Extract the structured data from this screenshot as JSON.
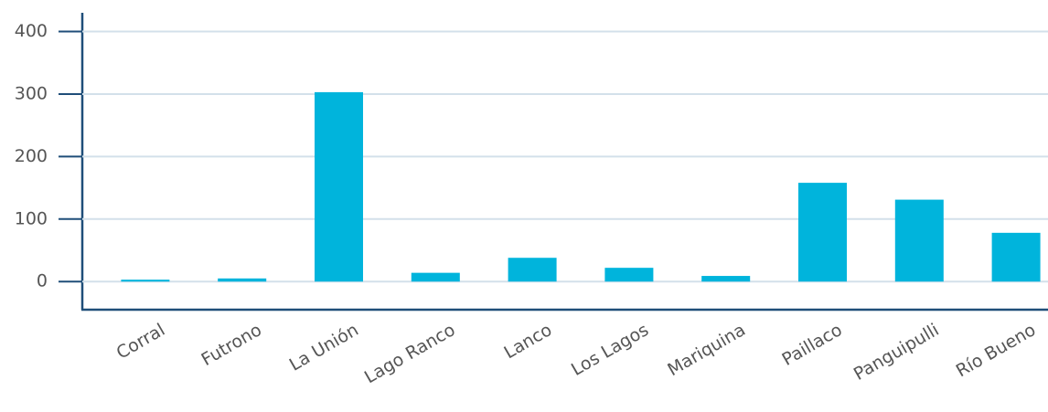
{
  "chart_data": {
    "type": "bar",
    "categories": [
      "Corral",
      "Futrono",
      "La Unión",
      "Lago Ranco",
      "Lanco",
      "Los Lagos",
      "Mariquina",
      "Paillaco",
      "Panguipulli",
      "Río Bueno"
    ],
    "values": [
      3,
      5,
      303,
      14,
      38,
      22,
      9,
      158,
      131,
      78
    ],
    "color": "#00b4dc",
    "ylim": [
      -45,
      430
    ],
    "yticks": [
      0,
      100,
      200,
      300,
      400
    ],
    "grid": true
  }
}
